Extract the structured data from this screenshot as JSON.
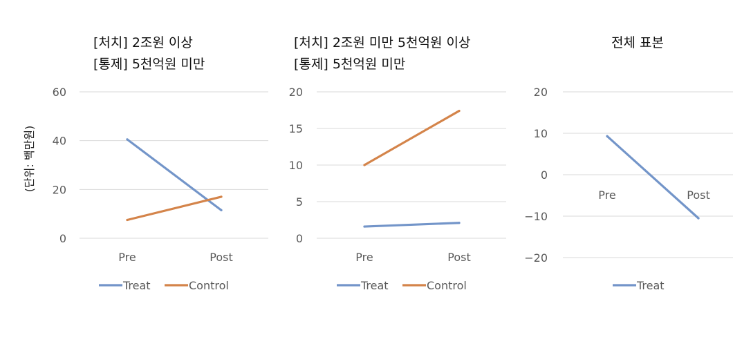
{
  "figure": {
    "ylabel": "(단위: 백만원)"
  },
  "colors": {
    "treat": "#7395c9",
    "control": "#d4844a",
    "grid": "#d9d9d9",
    "tick": "#595959",
    "title": "#111111"
  },
  "chart_data": [
    {
      "type": "line",
      "title": [
        "[처치] 2조원 이상",
        "[통제] 5천억원 미만"
      ],
      "categories": [
        "Pre",
        "Post"
      ],
      "series": [
        {
          "name": "Treat",
          "values": [
            40.5,
            11.5
          ]
        },
        {
          "name": "Control",
          "values": [
            7.5,
            17
          ]
        }
      ],
      "ylim": [
        0,
        60
      ],
      "yticks": [
        0,
        20,
        40,
        60
      ],
      "grid": true,
      "legend": "bottom"
    },
    {
      "type": "line",
      "title": [
        "[처치] 2조원 미만 5천억원 이상",
        "[통제] 5천억원 미만"
      ],
      "categories": [
        "Pre",
        "Post"
      ],
      "series": [
        {
          "name": "Treat",
          "values": [
            1.6,
            2.1
          ]
        },
        {
          "name": "Control",
          "values": [
            10,
            17.4
          ]
        }
      ],
      "ylim": [
        0,
        20
      ],
      "yticks": [
        0,
        5,
        10,
        15,
        20
      ],
      "grid": true,
      "legend": "bottom"
    },
    {
      "type": "line",
      "title": [
        "전체 표본"
      ],
      "categories": [
        "Pre",
        "Post"
      ],
      "series": [
        {
          "name": "Treat",
          "values": [
            9.3,
            -10.5
          ]
        }
      ],
      "ylim": [
        -20,
        20
      ],
      "yticks": [
        -20,
        -10,
        0,
        10,
        20
      ],
      "ytick_labels": [
        "−20",
        "−10",
        "0",
        "10",
        "20"
      ],
      "grid": true,
      "legend": "bottom"
    }
  ]
}
